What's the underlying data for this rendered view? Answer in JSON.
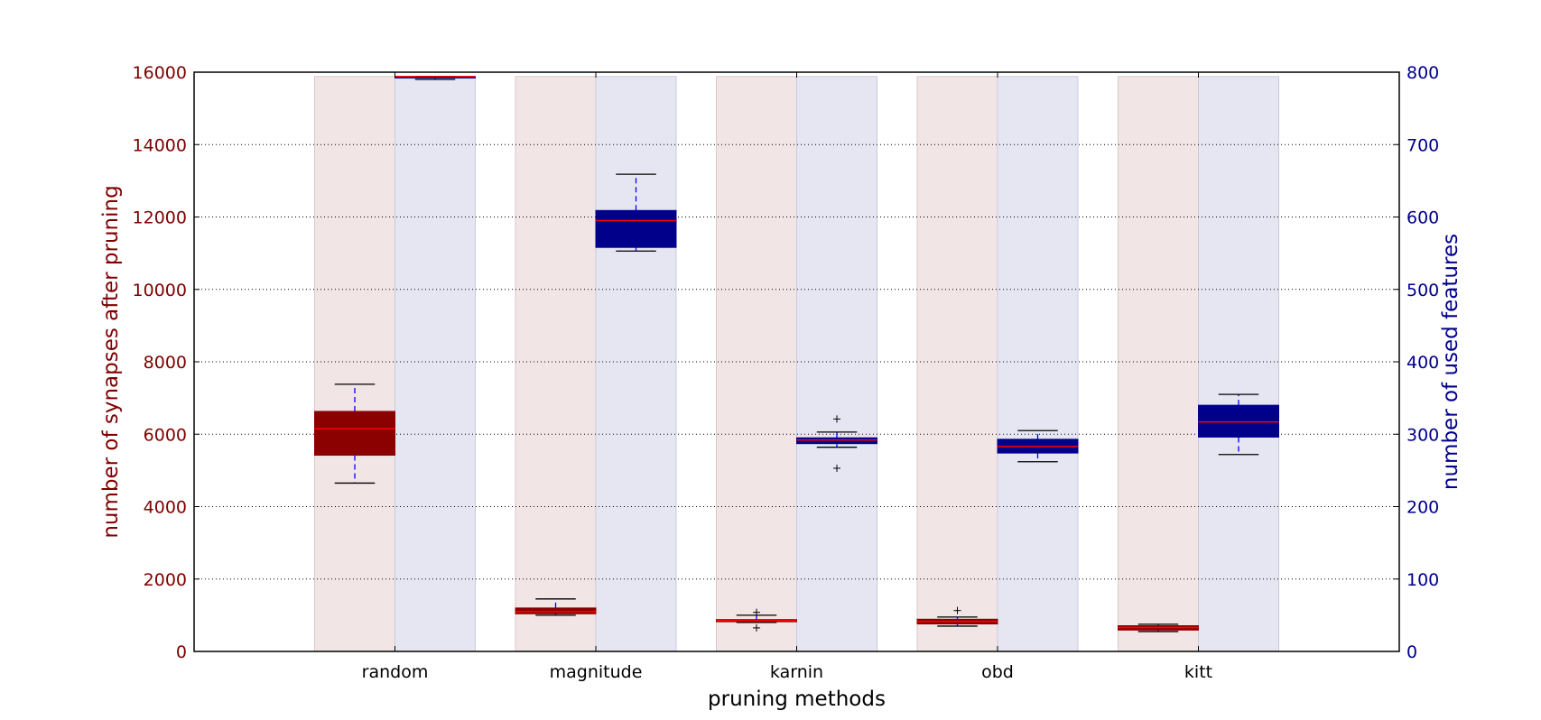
{
  "chart_data": {
    "type": "boxplot",
    "title": "",
    "xlabel": "pruning methods",
    "ylabel_left": "number of synapses after pruning",
    "ylabel_right": "number of used features",
    "ylim_left": [
      0,
      16000
    ],
    "ylim_right": [
      0,
      800
    ],
    "yticks_left": [
      0,
      2000,
      4000,
      6000,
      8000,
      10000,
      12000,
      14000,
      16000
    ],
    "yticks_right": [
      0,
      100,
      200,
      300,
      400,
      500,
      600,
      700,
      800
    ],
    "grid": "horizontal dotted",
    "categories": [
      "random",
      "magnitude",
      "karnin",
      "obd",
      "kitt"
    ],
    "background_bar_left_value": 15880,
    "background_bar_right_value": 794,
    "series": [
      {
        "name": "number of synapses after pruning",
        "axis": "left",
        "boxes": [
          {
            "whislo": 4650,
            "q1": 5420,
            "med": 6150,
            "q3": 6630,
            "whishi": 7380,
            "fliers": []
          },
          {
            "whislo": 1000,
            "q1": 1040,
            "med": 1100,
            "q3": 1200,
            "whishi": 1450,
            "fliers": []
          },
          {
            "whislo": 800,
            "q1": 820,
            "med": 850,
            "q3": 880,
            "whishi": 1000,
            "fliers": [
              1080,
              650
            ]
          },
          {
            "whislo": 700,
            "q1": 760,
            "med": 830,
            "q3": 890,
            "whishi": 950,
            "fliers": [
              1130
            ]
          },
          {
            "whislo": 550,
            "q1": 590,
            "med": 660,
            "q3": 710,
            "whishi": 750,
            "fliers": []
          }
        ]
      },
      {
        "name": "number of used features",
        "axis": "right",
        "boxes": [
          {
            "whislo": 790,
            "q1": 792,
            "med": 794,
            "q3": 794,
            "whishi": 794,
            "fliers": []
          },
          {
            "whislo": 553,
            "q1": 558,
            "med": 595,
            "q3": 609,
            "whishi": 659,
            "fliers": []
          },
          {
            "whislo": 282,
            "q1": 287,
            "med": 292,
            "q3": 295,
            "whishi": 303,
            "fliers": [
              321,
              253
            ]
          },
          {
            "whislo": 262,
            "q1": 274,
            "med": 283,
            "q3": 293,
            "whishi": 305,
            "fliers": []
          },
          {
            "whislo": 272,
            "q1": 296,
            "med": 317,
            "q3": 340,
            "whishi": 355,
            "fliers": []
          }
        ]
      }
    ]
  },
  "colors": {
    "left_axis": "#800000",
    "right_axis": "#00008b",
    "left_box": "#8b0000",
    "right_box": "#00008b",
    "median": "#ff0000",
    "left_bg": "#f2e5e5",
    "right_bg": "#e6e6f3",
    "whisker_left": "#0000ff",
    "whisker_right": "#0000ff"
  }
}
